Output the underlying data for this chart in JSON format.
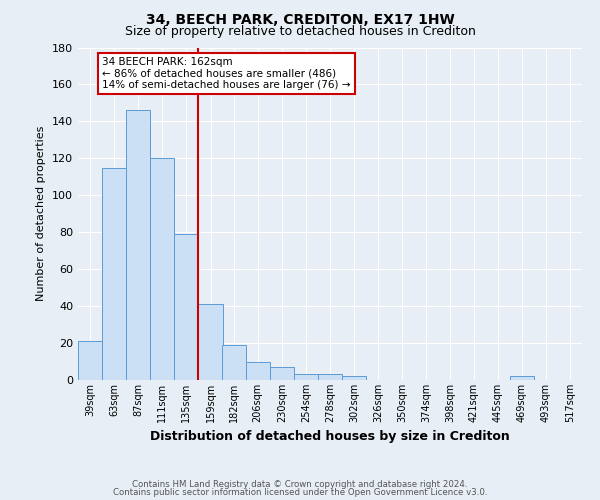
{
  "title": "34, BEECH PARK, CREDITON, EX17 1HW",
  "subtitle": "Size of property relative to detached houses in Crediton",
  "xlabel": "Distribution of detached houses by size in Crediton",
  "ylabel": "Number of detached properties",
  "footnote1": "Contains HM Land Registry data © Crown copyright and database right 2024.",
  "footnote2": "Contains public sector information licensed under the Open Government Licence v3.0.",
  "bins": [
    "39sqm",
    "63sqm",
    "87sqm",
    "111sqm",
    "135sqm",
    "159sqm",
    "182sqm",
    "206sqm",
    "230sqm",
    "254sqm",
    "278sqm",
    "302sqm",
    "326sqm",
    "350sqm",
    "374sqm",
    "398sqm",
    "421sqm",
    "445sqm",
    "469sqm",
    "493sqm",
    "517sqm"
  ],
  "bin_edges": [
    39,
    63,
    87,
    111,
    135,
    159,
    182,
    206,
    230,
    254,
    278,
    302,
    326,
    350,
    374,
    398,
    421,
    445,
    469,
    493,
    517
  ],
  "values": [
    21,
    115,
    146,
    120,
    79,
    41,
    19,
    10,
    7,
    3,
    3,
    2,
    0,
    0,
    0,
    0,
    0,
    0,
    2,
    0,
    0
  ],
  "bar_color": "#cce0f5",
  "bar_edge_color": "#5b9bd5",
  "property_line_x": 159,
  "annotation_text": "34 BEECH PARK: 162sqm\n← 86% of detached houses are smaller (486)\n14% of semi-detached houses are larger (76) →",
  "annotation_box_color": "#ffffff",
  "annotation_box_edge": "#cc0000",
  "vline_color": "#cc0000",
  "ylim": [
    0,
    180
  ],
  "yticks": [
    0,
    20,
    40,
    60,
    80,
    100,
    120,
    140,
    160,
    180
  ],
  "bg_color": "#e8eef5",
  "plot_bg_color": "#e8eef5",
  "grid_color": "#ffffff",
  "title_fontsize": 10,
  "subtitle_fontsize": 9
}
